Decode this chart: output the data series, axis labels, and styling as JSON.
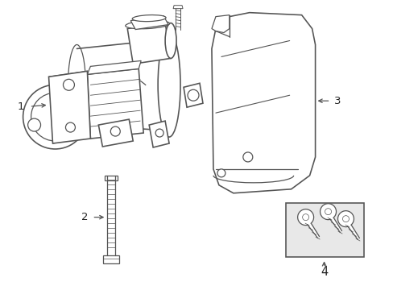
{
  "background_color": "#ffffff",
  "line_color": "#555555",
  "label_color": "#222222",
  "box_fill": "#ebebeb",
  "lw": 0.9
}
